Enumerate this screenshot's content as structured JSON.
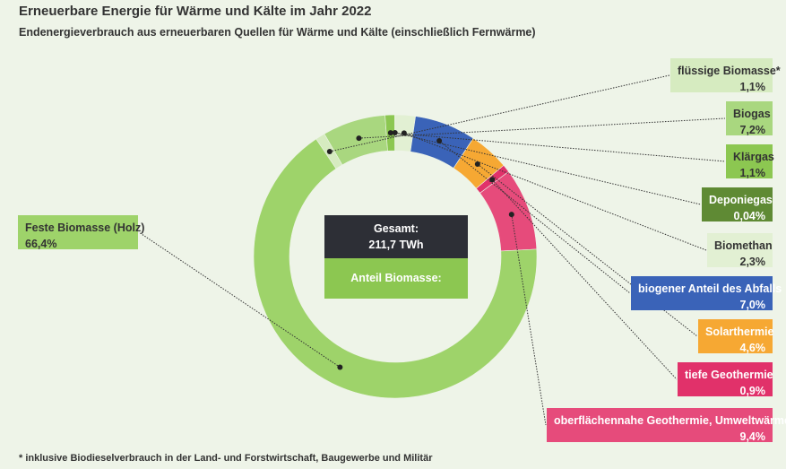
{
  "header": {
    "title": "Erneuerbare Energie für Wärme und Kälte im Jahr 2022",
    "subtitle": "Endenergieverbrauch aus erneuerbaren Quellen für Wärme und Kälte (einschließlich Fernwärme)"
  },
  "center": {
    "total_label": "Gesamt:",
    "total_value": "211,7 TWh",
    "biomass_label": "Anteil Biomasse:"
  },
  "footnote": "*  inklusive Biodieselverbrauch in der Land- und Forstwirtschaft, Baugewerbe und Militär",
  "chart_data": {
    "type": "pie",
    "title": "Erneuerbare Energie für Wärme und Kälte im Jahr 2022",
    "subtitle": "Endenergieverbrauch aus erneuerbaren Quellen für Wärme und Kälte (einschließlich Fernwärme)",
    "total": "211,7 TWh",
    "unit": "%",
    "series": [
      {
        "name": "flüssige Biomasse*",
        "value": 1.1,
        "label": "1,1%",
        "color": "#d6ebc0",
        "text_color": "#333333"
      },
      {
        "name": "Biogas",
        "value": 7.2,
        "label": "7,2%",
        "color": "#a9d77f",
        "text_color": "#333333"
      },
      {
        "name": "Klärgas",
        "value": 1.1,
        "label": "1,1%",
        "color": "#8cc751",
        "text_color": "#333333"
      },
      {
        "name": "Deponiegas",
        "value": 0.04,
        "label": "0,04%",
        "color": "#5f8a34",
        "text_color": "#ffffff"
      },
      {
        "name": "Biomethan",
        "value": 2.3,
        "label": "2,3%",
        "color": "#e2f0d3",
        "text_color": "#333333"
      },
      {
        "name": "biogener Anteil des Abfalls",
        "value": 7.0,
        "label": "7,0%",
        "color": "#3a63b8",
        "text_color": "#ffffff"
      },
      {
        "name": "Solarthermie",
        "value": 4.6,
        "label": "4,6%",
        "color": "#f6a833",
        "text_color": "#ffffff"
      },
      {
        "name": "tiefe Geothermie",
        "value": 0.9,
        "label": "0,9%",
        "color": "#e1316a",
        "text_color": "#ffffff"
      },
      {
        "name": "oberflächennahe Geothermie, Umweltwärme",
        "value": 9.4,
        "label": "9,4%",
        "color": "#e64b7b",
        "text_color": "#ffffff"
      },
      {
        "name": "Feste Biomasse (Holz)",
        "value": 66.4,
        "label": "66,4%",
        "color": "#9ed36a",
        "text_color": "#333333"
      }
    ]
  }
}
